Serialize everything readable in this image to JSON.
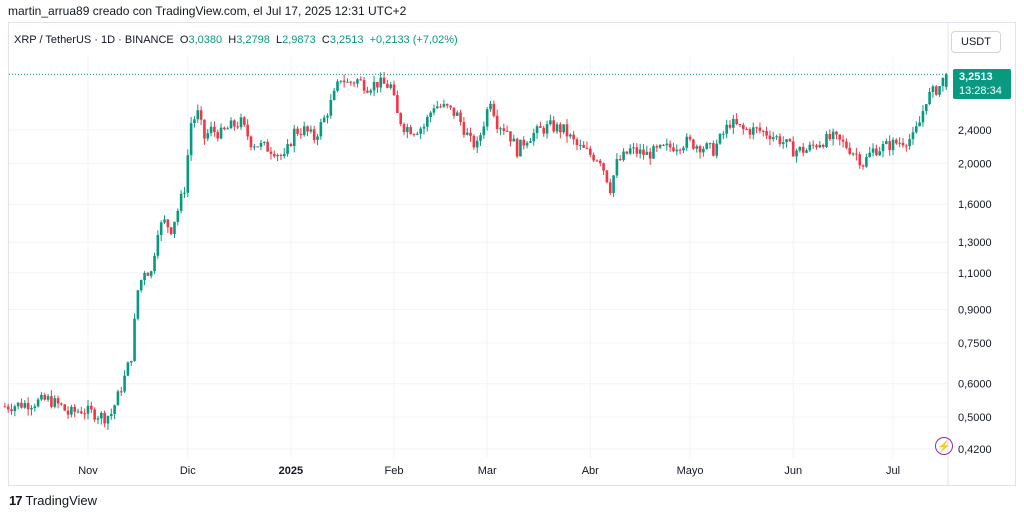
{
  "credit": "martin_arrua89 creado con TradingView.com, el Jul 17, 2025 12:31 UTC+2",
  "symbol": {
    "name": "XRP / TetherUS · 1D · BINANCE",
    "o_label": "O",
    "o_value": "3,0380",
    "h_label": "H",
    "h_value": "3,2798",
    "l_label": "L",
    "l_value": "2,9873",
    "c_label": "C",
    "c_value": "3,2513",
    "change": "+0,2133 (+7,02%)"
  },
  "currency": "USDT",
  "price_tag": {
    "last": "3,2513",
    "countdown": "13:28:34"
  },
  "brand": {
    "icon": "17",
    "name": "TradingView"
  },
  "bolt_icon": "lightning-icon",
  "colors": {
    "up": "#089981",
    "down": "#f23645",
    "grid": "#f0f3fa",
    "text": "#131722",
    "accent": "#9c27b0"
  },
  "chart_data": {
    "type": "candlestick",
    "scale": "log",
    "y_ticks": [
      {
        "value": 2.4,
        "label": "2,4000"
      },
      {
        "value": 2.0,
        "label": "2,0000"
      },
      {
        "value": 1.6,
        "label": "1,6000"
      },
      {
        "value": 1.3,
        "label": "1,3000"
      },
      {
        "value": 1.1,
        "label": "1,1000"
      },
      {
        "value": 0.9,
        "label": "0,9000"
      },
      {
        "value": 0.75,
        "label": "0,7500"
      },
      {
        "value": 0.6,
        "label": "0,6000"
      },
      {
        "value": 0.5,
        "label": "0,5000"
      },
      {
        "value": 0.42,
        "label": "0,4200"
      }
    ],
    "x_ticks": [
      {
        "date": "2024-11-01",
        "label": "Nov",
        "bold": false
      },
      {
        "date": "2024-12-01",
        "label": "Dic",
        "bold": false
      },
      {
        "date": "2025-01-01",
        "label": "2025",
        "bold": true
      },
      {
        "date": "2025-02-01",
        "label": "Feb",
        "bold": false
      },
      {
        "date": "2025-03-01",
        "label": "Mar",
        "bold": false
      },
      {
        "date": "2025-04-01",
        "label": "Abr",
        "bold": false
      },
      {
        "date": "2025-05-01",
        "label": "Mayo",
        "bold": false
      },
      {
        "date": "2025-06-01",
        "label": "Jun",
        "bold": false
      },
      {
        "date": "2025-07-01",
        "label": "Jul",
        "bold": false
      }
    ],
    "grid": true,
    "last_price": 3.2513,
    "closes": [
      {
        "date": "2024-10-07",
        "close": 0.53
      },
      {
        "date": "2024-10-15",
        "close": 0.54
      },
      {
        "date": "2024-10-20",
        "close": 0.55
      },
      {
        "date": "2024-10-24",
        "close": 0.53
      },
      {
        "date": "2024-10-26",
        "close": 0.51
      },
      {
        "date": "2024-10-30",
        "close": 0.52
      },
      {
        "date": "2024-11-03",
        "close": 0.51
      },
      {
        "date": "2024-11-06",
        "close": 0.5
      },
      {
        "date": "2024-11-08",
        "close": 0.51
      },
      {
        "date": "2024-11-10",
        "close": 0.56
      },
      {
        "date": "2024-11-12",
        "close": 0.62
      },
      {
        "date": "2024-11-14",
        "close": 0.7
      },
      {
        "date": "2024-11-16",
        "close": 1.0
      },
      {
        "date": "2024-11-18",
        "close": 1.12
      },
      {
        "date": "2024-11-20",
        "close": 1.1
      },
      {
        "date": "2024-11-22",
        "close": 1.4
      },
      {
        "date": "2024-11-24",
        "close": 1.45
      },
      {
        "date": "2024-11-26",
        "close": 1.4
      },
      {
        "date": "2024-11-28",
        "close": 1.55
      },
      {
        "date": "2024-11-30",
        "close": 1.75
      },
      {
        "date": "2024-12-02",
        "close": 2.5
      },
      {
        "date": "2024-12-04",
        "close": 2.62
      },
      {
        "date": "2024-12-06",
        "close": 2.3
      },
      {
        "date": "2024-12-08",
        "close": 2.4
      },
      {
        "date": "2024-12-11",
        "close": 2.35
      },
      {
        "date": "2024-12-14",
        "close": 2.45
      },
      {
        "date": "2024-12-17",
        "close": 2.5
      },
      {
        "date": "2024-12-20",
        "close": 2.25
      },
      {
        "date": "2024-12-23",
        "close": 2.2
      },
      {
        "date": "2024-12-27",
        "close": 2.15
      },
      {
        "date": "2024-12-30",
        "close": 2.05
      },
      {
        "date": "2025-01-02",
        "close": 2.38
      },
      {
        "date": "2025-01-05",
        "close": 2.4
      },
      {
        "date": "2025-01-08",
        "close": 2.3
      },
      {
        "date": "2025-01-11",
        "close": 2.55
      },
      {
        "date": "2025-01-14",
        "close": 2.9
      },
      {
        "date": "2025-01-16",
        "close": 3.2
      },
      {
        "date": "2025-01-18",
        "close": 3.1
      },
      {
        "date": "2025-01-21",
        "close": 3.15
      },
      {
        "date": "2025-01-24",
        "close": 3.05
      },
      {
        "date": "2025-01-27",
        "close": 3.1
      },
      {
        "date": "2025-01-31",
        "close": 3.05
      },
      {
        "date": "2025-02-02",
        "close": 2.6
      },
      {
        "date": "2025-02-04",
        "close": 2.45
      },
      {
        "date": "2025-02-07",
        "close": 2.4
      },
      {
        "date": "2025-02-10",
        "close": 2.45
      },
      {
        "date": "2025-02-13",
        "close": 2.75
      },
      {
        "date": "2025-02-17",
        "close": 2.7
      },
      {
        "date": "2025-02-20",
        "close": 2.6
      },
      {
        "date": "2025-02-24",
        "close": 2.25
      },
      {
        "date": "2025-02-26",
        "close": 2.2
      },
      {
        "date": "2025-03-02",
        "close": 2.85
      },
      {
        "date": "2025-03-04",
        "close": 2.5
      },
      {
        "date": "2025-03-07",
        "close": 2.4
      },
      {
        "date": "2025-03-10",
        "close": 2.15
      },
      {
        "date": "2025-03-13",
        "close": 2.3
      },
      {
        "date": "2025-03-17",
        "close": 2.4
      },
      {
        "date": "2025-03-20",
        "close": 2.45
      },
      {
        "date": "2025-03-24",
        "close": 2.4
      },
      {
        "date": "2025-03-28",
        "close": 2.2
      },
      {
        "date": "2025-04-01",
        "close": 2.1
      },
      {
        "date": "2025-04-04",
        "close": 2.05
      },
      {
        "date": "2025-04-07",
        "close": 1.75
      },
      {
        "date": "2025-04-09",
        "close": 2.0
      },
      {
        "date": "2025-04-13",
        "close": 2.15
      },
      {
        "date": "2025-04-18",
        "close": 2.1
      },
      {
        "date": "2025-04-22",
        "close": 2.15
      },
      {
        "date": "2025-04-26",
        "close": 2.2
      },
      {
        "date": "2025-04-30",
        "close": 2.25
      },
      {
        "date": "2025-05-04",
        "close": 2.2
      },
      {
        "date": "2025-05-08",
        "close": 2.15
      },
      {
        "date": "2025-05-11",
        "close": 2.35
      },
      {
        "date": "2025-05-13",
        "close": 2.5
      },
      {
        "date": "2025-05-17",
        "close": 2.4
      },
      {
        "date": "2025-05-21",
        "close": 2.4
      },
      {
        "date": "2025-05-25",
        "close": 2.35
      },
      {
        "date": "2025-05-29",
        "close": 2.25
      },
      {
        "date": "2025-06-01",
        "close": 2.15
      },
      {
        "date": "2025-06-05",
        "close": 2.15
      },
      {
        "date": "2025-06-09",
        "close": 2.25
      },
      {
        "date": "2025-06-13",
        "close": 2.3
      },
      {
        "date": "2025-06-17",
        "close": 2.2
      },
      {
        "date": "2025-06-20",
        "close": 2.1
      },
      {
        "date": "2025-06-22",
        "close": 2.0
      },
      {
        "date": "2025-06-25",
        "close": 2.15
      },
      {
        "date": "2025-06-29",
        "close": 2.2
      },
      {
        "date": "2025-07-03",
        "close": 2.25
      },
      {
        "date": "2025-07-07",
        "close": 2.3
      },
      {
        "date": "2025-07-09",
        "close": 2.5
      },
      {
        "date": "2025-07-11",
        "close": 2.85
      },
      {
        "date": "2025-07-13",
        "close": 2.95
      },
      {
        "date": "2025-07-15",
        "close": 3.05
      },
      {
        "date": "2025-07-17",
        "close": 3.2513
      }
    ]
  }
}
